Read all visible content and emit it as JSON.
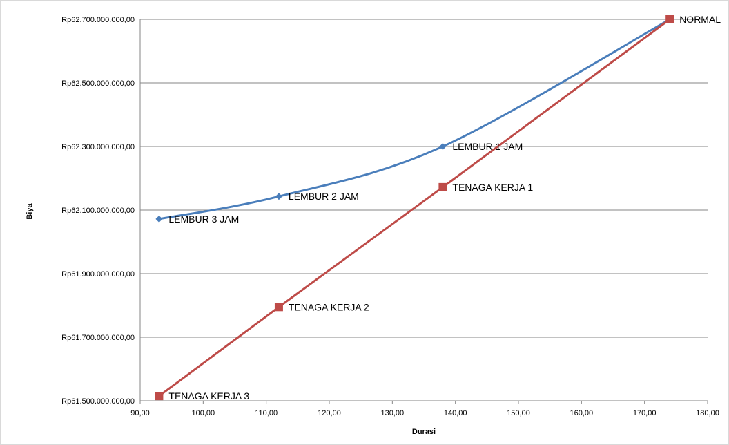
{
  "chart_data": {
    "type": "line",
    "title": "",
    "xlabel": "Durasi",
    "ylabel": "Biya",
    "xlim": [
      90,
      180
    ],
    "ylim": [
      61500000000,
      62700000000
    ],
    "x_ticks": [
      90,
      100,
      110,
      120,
      130,
      140,
      150,
      160,
      170,
      180
    ],
    "x_tick_labels": [
      "90,00",
      "100,00",
      "110,00",
      "120,00",
      "130,00",
      "140,00",
      "150,00",
      "160,00",
      "170,00",
      "180,00"
    ],
    "y_ticks": [
      61500000000,
      61700000000,
      61900000000,
      62100000000,
      62300000000,
      62500000000,
      62700000000
    ],
    "y_tick_labels": [
      "Rp61.500.000.000,00",
      "Rp61.700.000.000,00",
      "Rp61.900.000.000,00",
      "Rp62.100.000.000,00",
      "Rp62.300.000.000,00",
      "Rp62.500.000.000,00",
      "Rp62.700.000.000,00"
    ],
    "grid": "horizontal",
    "legend": "none",
    "series": [
      {
        "color": "#4a7ebb",
        "marker": "diamond",
        "smooth": true,
        "points": [
          {
            "x": 93,
            "y": 62072000000,
            "label": "LEMBUR 3 JAM"
          },
          {
            "x": 112,
            "y": 62143000000,
            "label": "LEMBUR 2 JAM"
          },
          {
            "x": 138,
            "y": 62300000000,
            "label": "LEMBUR 1 JAM"
          },
          {
            "x": 174,
            "y": 62700000000,
            "label": ""
          }
        ]
      },
      {
        "color": "#be4b48",
        "marker": "square",
        "smooth": false,
        "points": [
          {
            "x": 93,
            "y": 61515000000,
            "label": "TENAGA KERJA 3"
          },
          {
            "x": 112,
            "y": 61795000000,
            "label": "TENAGA KERJA 2"
          },
          {
            "x": 138,
            "y": 62172000000,
            "label": "TENAGA KERJA 1"
          },
          {
            "x": 174,
            "y": 62700000000,
            "label": "NORMAL"
          }
        ]
      }
    ]
  }
}
